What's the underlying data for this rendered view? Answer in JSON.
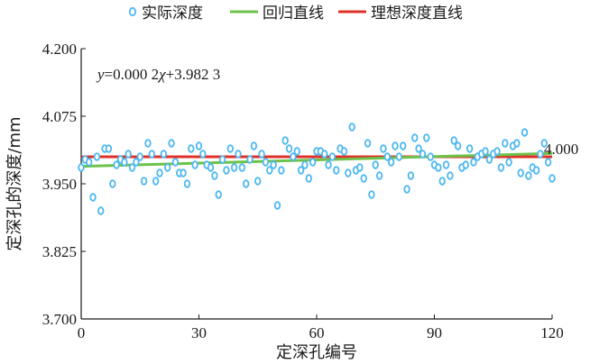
{
  "chart_data": {
    "type": "scatter",
    "xlabel": "定深孔编号",
    "ylabel": "定深孔的深度/mm",
    "xlim": [
      0,
      120
    ],
    "ylim": [
      3.7,
      4.2
    ],
    "x_ticks": [
      "0",
      "30",
      "60",
      "90",
      "120"
    ],
    "y_ticks": [
      "4.200",
      "4.075",
      "3.950",
      "3.825",
      "3.700"
    ],
    "grid": false,
    "legend_position": "top",
    "legend": {
      "points": "实际深度",
      "regression": "回归直线",
      "ideal": "理想深度直线"
    },
    "equation": {
      "var": "y",
      "text": "=0.000 2",
      "chi": "χ",
      "rest": "+3.982 3"
    },
    "ideal_label": "4.000",
    "ideal_value": 4.0,
    "regression_line": {
      "slope": 0.0002,
      "intercept": 3.9823,
      "x_range": [
        0,
        120
      ]
    },
    "ideal_line": {
      "y": 4.0,
      "x_range": [
        0,
        120
      ]
    },
    "colors": {
      "points": "#4db8f0",
      "regression": "#6cc24a",
      "ideal": "#e0302a"
    },
    "series": [
      {
        "name": "实际深度",
        "x": [
          0,
          1,
          2,
          3,
          4,
          5,
          6,
          7,
          8,
          9,
          10,
          11,
          12,
          13,
          14,
          15,
          16,
          17,
          18,
          19,
          20,
          21,
          22,
          23,
          24,
          25,
          26,
          27,
          28,
          29,
          30,
          31,
          32,
          33,
          34,
          35,
          36,
          37,
          38,
          39,
          40,
          41,
          42,
          43,
          44,
          45,
          46,
          47,
          48,
          49,
          50,
          51,
          52,
          53,
          54,
          55,
          56,
          57,
          58,
          59,
          60,
          61,
          62,
          63,
          64,
          65,
          66,
          67,
          68,
          69,
          70,
          71,
          72,
          73,
          74,
          75,
          76,
          77,
          78,
          79,
          80,
          81,
          82,
          83,
          84,
          85,
          86,
          87,
          88,
          89,
          90,
          91,
          92,
          93,
          94,
          95,
          96,
          97,
          98,
          99,
          100,
          101,
          102,
          103,
          104,
          105,
          106,
          107,
          108,
          109,
          110,
          111,
          112,
          113,
          114,
          115,
          116,
          117,
          118,
          119,
          120
        ],
        "y": [
          3.98,
          3.995,
          3.99,
          3.925,
          4.0,
          3.9,
          4.015,
          4.015,
          3.95,
          3.985,
          3.995,
          3.99,
          4.005,
          3.98,
          3.99,
          4.0,
          3.955,
          4.025,
          4.005,
          3.955,
          3.97,
          4.005,
          3.98,
          4.025,
          3.99,
          3.97,
          3.97,
          3.95,
          4.015,
          3.985,
          4.02,
          4.005,
          3.985,
          3.98,
          3.965,
          3.93,
          3.995,
          3.975,
          4.015,
          3.98,
          4.005,
          3.98,
          3.95,
          3.995,
          4.02,
          3.955,
          4.005,
          3.99,
          3.975,
          3.985,
          3.91,
          3.975,
          4.03,
          4.015,
          4.0,
          4.01,
          3.975,
          3.985,
          3.96,
          3.99,
          4.01,
          4.01,
          4.005,
          3.985,
          4.0,
          3.975,
          4.015,
          4.01,
          3.97,
          4.055,
          3.975,
          3.98,
          3.96,
          4.025,
          3.93,
          3.985,
          3.965,
          4.015,
          4.0,
          3.99,
          4.02,
          4.0,
          4.02,
          3.94,
          3.965,
          4.035,
          4.015,
          4.005,
          4.035,
          4.0,
          3.985,
          3.98,
          3.955,
          3.985,
          3.965,
          4.03,
          4.02,
          3.98,
          3.985,
          4.015,
          3.99,
          4.0,
          4.005,
          4.01,
          3.995,
          4.005,
          4.01,
          3.98,
          4.025,
          3.99,
          4.02,
          4.025,
          3.97,
          4.045,
          3.965,
          3.98,
          3.975,
          4.005,
          4.025,
          3.99,
          3.96
        ]
      }
    ]
  }
}
